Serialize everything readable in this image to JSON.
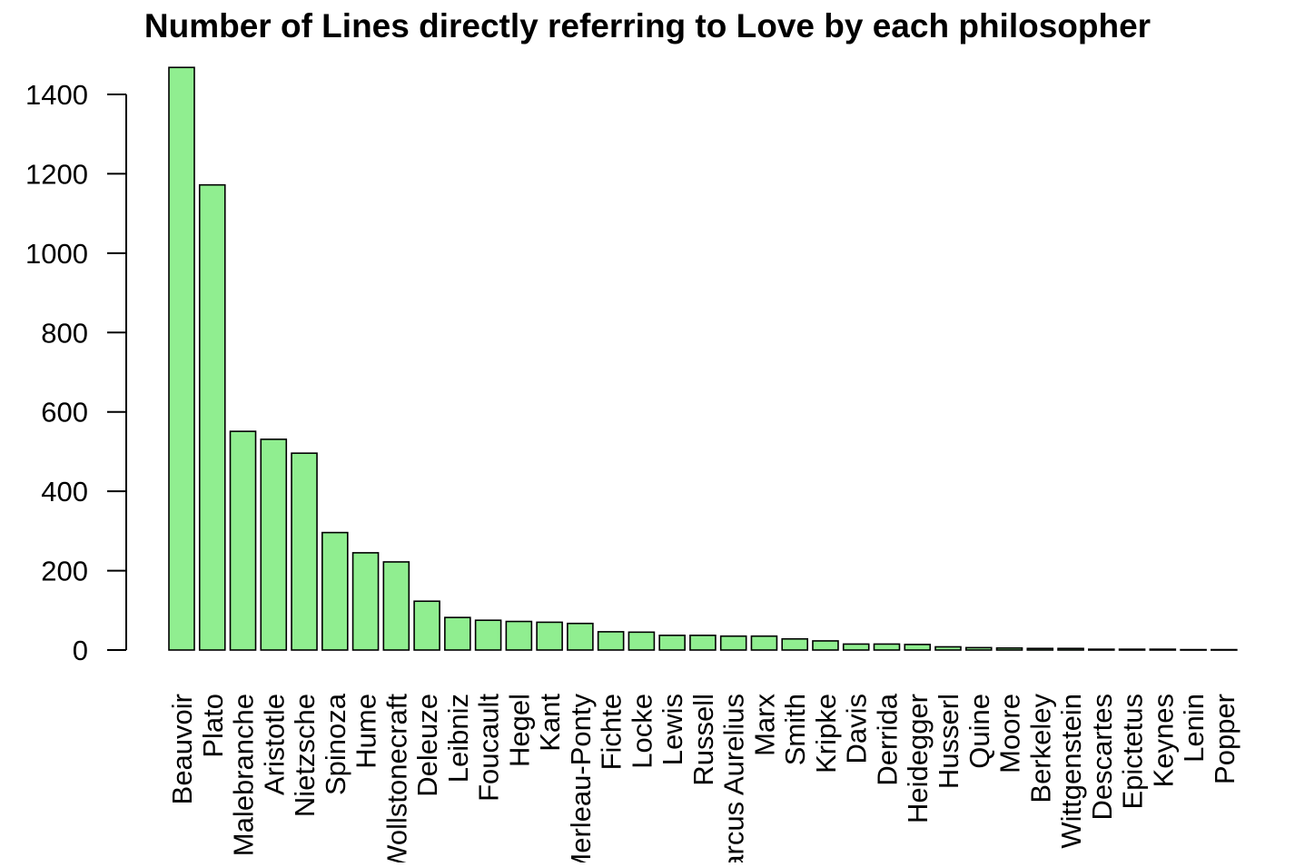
{
  "chart_data": {
    "type": "bar",
    "title": "Number of Lines directly referring to Love by each philosopher",
    "xlabel": "",
    "ylabel": "",
    "ylim": [
      0,
      1400
    ],
    "yticks": [
      0,
      200,
      400,
      600,
      800,
      1000,
      1200,
      1400
    ],
    "categories": [
      "Beauvoir",
      "Plato",
      "Malebranche",
      "Aristotle",
      "Nietzsche",
      "Spinoza",
      "Hume",
      "Wollstonecraft",
      "Deleuze",
      "Leibniz",
      "Foucault",
      "Hegel",
      "Kant",
      "Merleau-Ponty",
      "Fichte",
      "Locke",
      "Lewis",
      "Russell",
      "Marcus Aurelius",
      "Marx",
      "Smith",
      "Kripke",
      "Davis",
      "Derrida",
      "Heidegger",
      "Husserl",
      "Quine",
      "Moore",
      "Berkeley",
      "Wittgenstein",
      "Descartes",
      "Epictetus",
      "Keynes",
      "Lenin",
      "Popper"
    ],
    "values": [
      1468,
      1172,
      551,
      531,
      496,
      296,
      245,
      222,
      123,
      82,
      75,
      72,
      70,
      67,
      46,
      45,
      37,
      37,
      35,
      35,
      28,
      23,
      15,
      15,
      14,
      8,
      6,
      5,
      4,
      4,
      2,
      2,
      2,
      1,
      1
    ],
    "bar_color": "#90ee90",
    "bar_border_color": "#000000",
    "grid": false,
    "legend": "none"
  }
}
